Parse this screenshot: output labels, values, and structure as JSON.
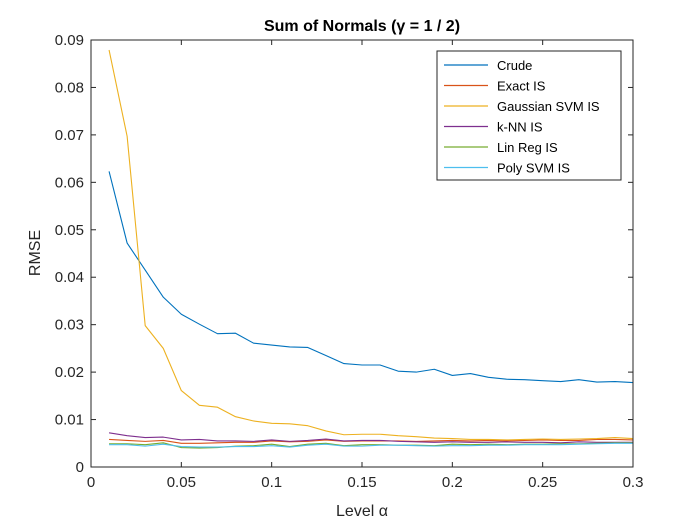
{
  "chart_data": {
    "type": "line",
    "title": "Sum of Normals (γ = 1 / 2)",
    "xlabel": "Level α",
    "ylabel": "RMSE",
    "xlim": [
      0,
      0.3
    ],
    "ylim": [
      0,
      0.09
    ],
    "xticks": [
      0,
      0.05,
      0.1,
      0.15,
      0.2,
      0.25,
      0.3
    ],
    "xtick_labels": [
      "0",
      "0.05",
      "0.1",
      "0.15",
      "0.2",
      "0.25",
      "0.3"
    ],
    "yticks": [
      0,
      0.01,
      0.02,
      0.03,
      0.04,
      0.05,
      0.06,
      0.07,
      0.08,
      0.09
    ],
    "ytick_labels": [
      "0",
      "0.01",
      "0.02",
      "0.03",
      "0.04",
      "0.05",
      "0.06",
      "0.07",
      "0.08",
      "0.09"
    ],
    "grid": false,
    "legend_position": "top-right",
    "x": [
      0.01,
      0.02,
      0.03,
      0.04,
      0.05,
      0.06,
      0.07,
      0.08,
      0.09,
      0.1,
      0.11,
      0.12,
      0.13,
      0.14,
      0.15,
      0.16,
      0.17,
      0.18,
      0.19,
      0.2,
      0.21,
      0.22,
      0.23,
      0.24,
      0.25,
      0.26,
      0.27,
      0.28,
      0.29,
      0.3
    ],
    "series": [
      {
        "name": "Crude",
        "color": "#0072BD",
        "values": [
          0.0623,
          0.0472,
          0.0415,
          0.0358,
          0.0322,
          0.0301,
          0.0281,
          0.0282,
          0.0261,
          0.0257,
          0.0253,
          0.0252,
          0.0235,
          0.0218,
          0.0215,
          0.0215,
          0.0202,
          0.02,
          0.0206,
          0.0193,
          0.0197,
          0.0189,
          0.0185,
          0.0184,
          0.0182,
          0.018,
          0.0184,
          0.0179,
          0.018,
          0.0178
        ]
      },
      {
        "name": "Exact IS",
        "color": "#D95319",
        "values": [
          0.0058,
          0.0056,
          0.0054,
          0.0056,
          0.005,
          0.005,
          0.0051,
          0.0052,
          0.0052,
          0.0055,
          0.0053,
          0.0054,
          0.0057,
          0.0054,
          0.0055,
          0.0055,
          0.0055,
          0.0054,
          0.0055,
          0.0056,
          0.0055,
          0.0056,
          0.0055,
          0.0056,
          0.0057,
          0.0056,
          0.0056,
          0.0058,
          0.0058,
          0.0057
        ]
      },
      {
        "name": "Gaussian SVM IS",
        "color": "#EDB120",
        "values": [
          0.0879,
          0.0697,
          0.0298,
          0.025,
          0.0161,
          0.013,
          0.0126,
          0.0106,
          0.0097,
          0.0092,
          0.0091,
          0.0087,
          0.0076,
          0.0068,
          0.0069,
          0.0069,
          0.0066,
          0.0064,
          0.0061,
          0.006,
          0.0058,
          0.0058,
          0.0057,
          0.0058,
          0.0059,
          0.0058,
          0.0059,
          0.006,
          0.0062,
          0.006
        ]
      },
      {
        "name": "k-NN IS",
        "color": "#7E2F8E",
        "values": [
          0.0072,
          0.0066,
          0.0062,
          0.0063,
          0.0057,
          0.0058,
          0.0055,
          0.0055,
          0.0054,
          0.0057,
          0.0054,
          0.0056,
          0.0059,
          0.0055,
          0.0056,
          0.0056,
          0.0054,
          0.0053,
          0.0052,
          0.0053,
          0.0052,
          0.0052,
          0.0053,
          0.0052,
          0.0052,
          0.0051,
          0.0053,
          0.0052,
          0.0052,
          0.0052
        ]
      },
      {
        "name": "Lin Reg IS",
        "color": "#77AC30",
        "values": [
          0.0049,
          0.0049,
          0.0047,
          0.0051,
          0.0041,
          0.004,
          0.0041,
          0.0044,
          0.0045,
          0.0048,
          0.0043,
          0.0048,
          0.005,
          0.0045,
          0.0047,
          0.0047,
          0.0046,
          0.0046,
          0.0045,
          0.0048,
          0.0047,
          0.0048,
          0.0047,
          0.0048,
          0.0048,
          0.0049,
          0.0049,
          0.005,
          0.0051,
          0.0051
        ]
      },
      {
        "name": "Poly SVM IS",
        "color": "#4DBEEE",
        "values": [
          0.0047,
          0.0047,
          0.0044,
          0.0048,
          0.0043,
          0.0042,
          0.0042,
          0.0043,
          0.0043,
          0.0045,
          0.0042,
          0.0046,
          0.0048,
          0.0044,
          0.0044,
          0.0046,
          0.0046,
          0.0045,
          0.0044,
          0.0045,
          0.0045,
          0.0046,
          0.0046,
          0.0047,
          0.0047,
          0.0047,
          0.0048,
          0.0049,
          0.005,
          0.005
        ]
      }
    ]
  }
}
